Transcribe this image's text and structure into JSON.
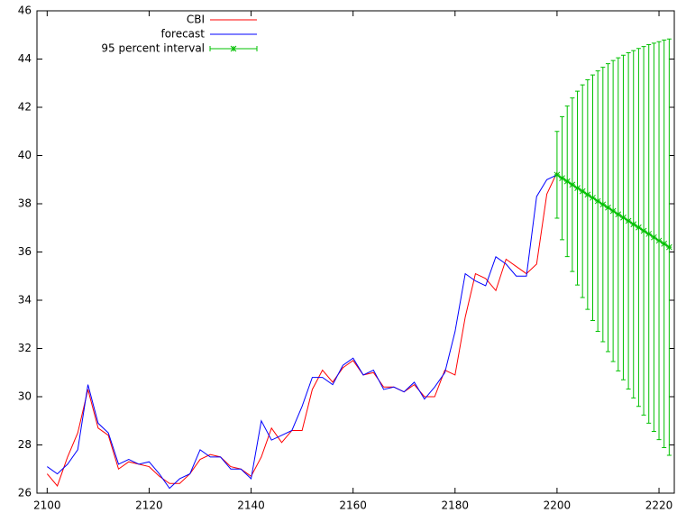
{
  "chart_data": {
    "type": "line",
    "xlim": [
      2098,
      2223
    ],
    "ylim": [
      26,
      46
    ],
    "xticks": [
      2100,
      2120,
      2140,
      2160,
      2180,
      2200,
      2220
    ],
    "yticks": [
      26,
      28,
      30,
      32,
      34,
      36,
      38,
      40,
      42,
      44,
      46
    ],
    "legend": "upper left",
    "series": [
      {
        "name": "CBI",
        "color": "#ff0000",
        "x": [
          2100,
          2102,
          2104,
          2106,
          2108,
          2110,
          2112,
          2114,
          2116,
          2118,
          2120,
          2122,
          2124,
          2126,
          2128,
          2130,
          2132,
          2134,
          2136,
          2138,
          2140,
          2142,
          2144,
          2146,
          2148,
          2150,
          2152,
          2154,
          2156,
          2158,
          2160,
          2162,
          2164,
          2166,
          2168,
          2170,
          2172,
          2174,
          2176,
          2178,
          2180,
          2182,
          2184,
          2186,
          2188,
          2190,
          2192,
          2194,
          2196,
          2198,
          2200
        ],
        "values": [
          26.8,
          26.3,
          27.5,
          28.5,
          30.3,
          28.7,
          28.4,
          27.0,
          27.3,
          27.2,
          27.1,
          26.7,
          26.4,
          26.4,
          26.8,
          27.4,
          27.6,
          27.5,
          27.1,
          27.0,
          26.7,
          27.5,
          28.7,
          28.1,
          28.6,
          28.6,
          30.3,
          31.1,
          30.6,
          31.2,
          31.5,
          30.9,
          31.0,
          30.4,
          30.4,
          30.2,
          30.5,
          30.0,
          30.0,
          31.1,
          30.9,
          33.3,
          35.1,
          34.9,
          34.4,
          35.7,
          35.4,
          35.1,
          35.5,
          38.4,
          39.3
        ]
      },
      {
        "name": "forecast",
        "color": "#0000ff",
        "x": [
          2100,
          2102,
          2104,
          2106,
          2108,
          2110,
          2112,
          2114,
          2116,
          2118,
          2120,
          2122,
          2124,
          2126,
          2128,
          2130,
          2132,
          2134,
          2136,
          2138,
          2140,
          2142,
          2144,
          2146,
          2148,
          2150,
          2152,
          2154,
          2156,
          2158,
          2160,
          2162,
          2164,
          2166,
          2168,
          2170,
          2172,
          2174,
          2176,
          2178,
          2180,
          2182,
          2184,
          2186,
          2188,
          2190,
          2192,
          2194,
          2196,
          2198,
          2200
        ],
        "values": [
          27.1,
          26.8,
          27.2,
          27.8,
          30.5,
          28.9,
          28.5,
          27.2,
          27.4,
          27.2,
          27.3,
          26.8,
          26.2,
          26.6,
          26.8,
          27.8,
          27.5,
          27.5,
          27.0,
          27.0,
          26.6,
          29.0,
          28.2,
          28.4,
          28.6,
          29.6,
          30.8,
          30.8,
          30.5,
          31.3,
          31.6,
          30.9,
          31.1,
          30.3,
          30.4,
          30.2,
          30.6,
          29.9,
          30.4,
          31.0,
          32.7,
          35.1,
          34.8,
          34.6,
          35.8,
          35.5,
          35.0,
          35.0,
          38.3,
          39.0,
          39.2
        ]
      }
    ],
    "interval": {
      "name": "95 percent interval",
      "color": "#00c000",
      "x": [
        2200,
        2201,
        2202,
        2203,
        2204,
        2205,
        2206,
        2207,
        2208,
        2209,
        2210,
        2211,
        2212,
        2213,
        2214,
        2215,
        2216,
        2217,
        2218,
        2219,
        2220,
        2221,
        2222
      ],
      "values": [
        39.2,
        39.06,
        38.93,
        38.79,
        38.65,
        38.52,
        38.38,
        38.25,
        38.11,
        37.97,
        37.84,
        37.7,
        37.56,
        37.43,
        37.29,
        37.15,
        37.02,
        36.88,
        36.75,
        36.61,
        36.47,
        36.34,
        36.2
      ],
      "errors": [
        1.8,
        2.55,
        3.12,
        3.6,
        4.02,
        4.41,
        4.76,
        5.09,
        5.4,
        5.69,
        5.97,
        6.24,
        6.49,
        6.73,
        6.97,
        7.2,
        7.42,
        7.64,
        7.85,
        8.05,
        8.25,
        8.45,
        8.63
      ]
    }
  }
}
